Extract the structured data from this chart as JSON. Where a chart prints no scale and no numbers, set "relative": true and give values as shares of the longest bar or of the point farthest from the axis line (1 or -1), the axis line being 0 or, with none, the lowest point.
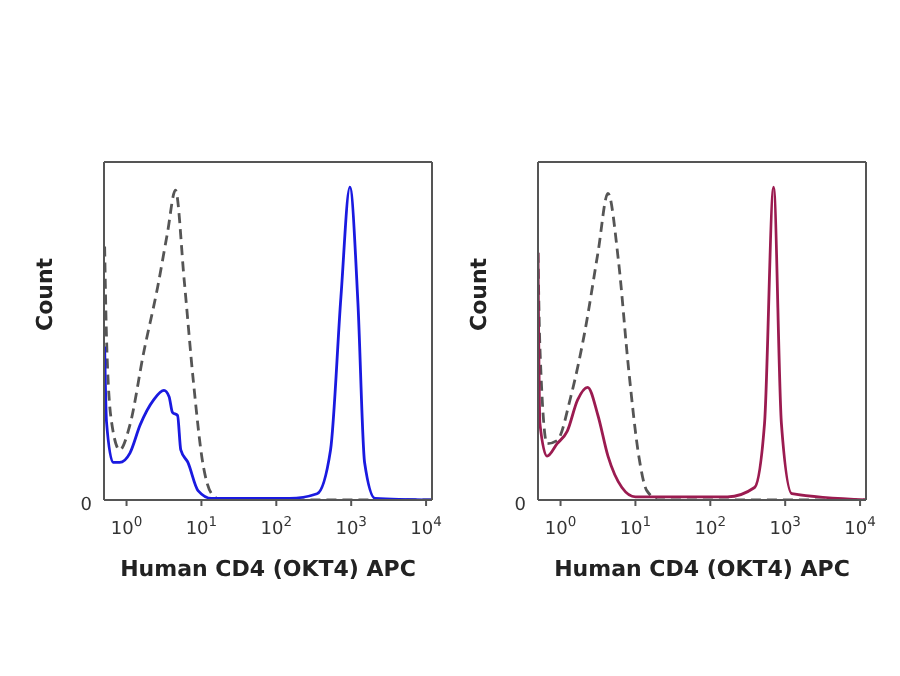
{
  "chart_data": [
    {
      "type": "line",
      "xlabel": "Human CD4 (OKT4) APC",
      "ylabel": "Count",
      "relative": true,
      "log": "x",
      "marker": "none",
      "annotations": [
        "0"
      ],
      "xlim": [
        0.5,
        12000
      ],
      "xticks": [
        {
          "value": 1,
          "label": "10$^{0}$"
        },
        {
          "value": 10,
          "label": "10$^{1}$"
        },
        {
          "value": 100,
          "label": "10$^{2}$"
        },
        {
          "value": 1000,
          "label": "10$^{3}$"
        },
        {
          "value": 10000,
          "label": "10$^{4}$"
        }
      ],
      "series": [
        {
          "color": "#555555",
          "line_style": "dashed",
          "x": [
            0.51,
            0.54,
            0.63,
            0.81,
            1.11,
            1.69,
            2.6,
            3.5,
            4.5,
            5.9,
            7.8,
            10.4,
            13.7,
            18.7,
            12000
          ],
          "values": [
            0.81,
            0.52,
            0.25,
            0.16,
            0.24,
            0.47,
            0.68,
            0.85,
            0.99,
            0.7,
            0.38,
            0.12,
            0.02,
            0,
            0
          ]
        },
        {
          "color": "#1a1ae0",
          "line_style": "solid",
          "x": [
            0.51,
            0.54,
            0.66,
            0.81,
            1.11,
            1.52,
            2.3,
            3.16,
            3.7,
            4.1,
            4.8,
            5.3,
            6.6,
            9,
            13.7,
            150,
            350,
            530,
            730,
            960,
            1230,
            1510,
            2090,
            12000
          ],
          "values": [
            0.49,
            0.25,
            0.12,
            0.12,
            0.15,
            0.24,
            0.32,
            0.35,
            0.33,
            0.28,
            0.27,
            0.16,
            0.12,
            0.03,
            0.005,
            0.005,
            0.02,
            0.16,
            0.65,
            1,
            0.63,
            0.12,
            0.005,
            0
          ]
        }
      ]
    },
    {
      "type": "line",
      "xlabel": "Human CD4 (OKT4) APC",
      "ylabel": "Count",
      "relative": true,
      "log": "x",
      "marker": "none",
      "annotations": [
        "0"
      ],
      "xlim": [
        0.5,
        12000
      ],
      "xticks": [
        {
          "value": 1,
          "label": "10$^{0}$"
        },
        {
          "value": 10,
          "label": "10$^{1}$"
        },
        {
          "value": 100,
          "label": "10$^{2}$"
        },
        {
          "value": 1000,
          "label": "10$^{3}$"
        },
        {
          "value": 10000,
          "label": "10$^{4}$"
        }
      ],
      "series": [
        {
          "color": "#555555",
          "line_style": "dashed",
          "x": [
            0.5,
            0.53,
            0.66,
            0.9,
            1.37,
            2.08,
            3.16,
            4.3,
            5.9,
            8.1,
            11.1,
            14.2,
            20.9,
            12000
          ],
          "values": [
            0.79,
            0.49,
            0.18,
            0.19,
            0.33,
            0.53,
            0.79,
            0.98,
            0.77,
            0.42,
            0.14,
            0.03,
            0,
            0
          ]
        },
        {
          "color": "#9b1b50",
          "line_style": "solid",
          "x": [
            0.5,
            0.53,
            0.66,
            0.9,
            1.23,
            1.69,
            2.3,
            3.16,
            4.3,
            6.6,
            10,
            170,
            390,
            530,
            700,
            890,
            1230,
            12000
          ],
          "values": [
            0.79,
            0.245,
            0.14,
            0.18,
            0.22,
            0.32,
            0.36,
            0.27,
            0.14,
            0.04,
            0.01,
            0.01,
            0.04,
            0.245,
            1,
            0.245,
            0.02,
            0
          ]
        }
      ]
    }
  ]
}
